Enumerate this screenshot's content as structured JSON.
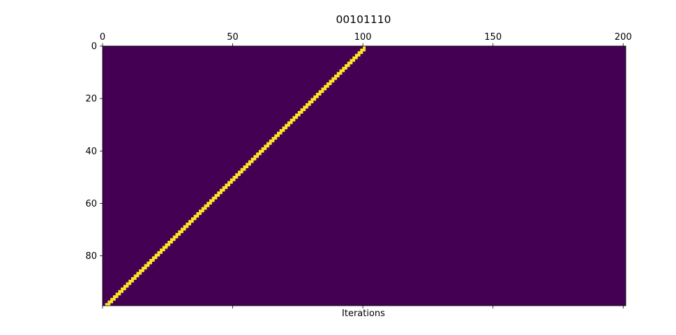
{
  "chart_data": {
    "type": "heatmap",
    "title": "00101110",
    "xlabel": "Iterations",
    "ylabel": "",
    "rule_bits": "00101110",
    "x_ticks": [
      0,
      50,
      100,
      150,
      200
    ],
    "y_ticks": [
      0,
      20,
      40,
      60,
      80
    ],
    "xlim": [
      0,
      201
    ],
    "ylim": [
      99,
      0
    ],
    "grid_shape": {
      "rows": 100,
      "cols": 201
    },
    "seed_cell": 100,
    "colormap": {
      "off": "#440154",
      "on": "#fde725"
    }
  }
}
